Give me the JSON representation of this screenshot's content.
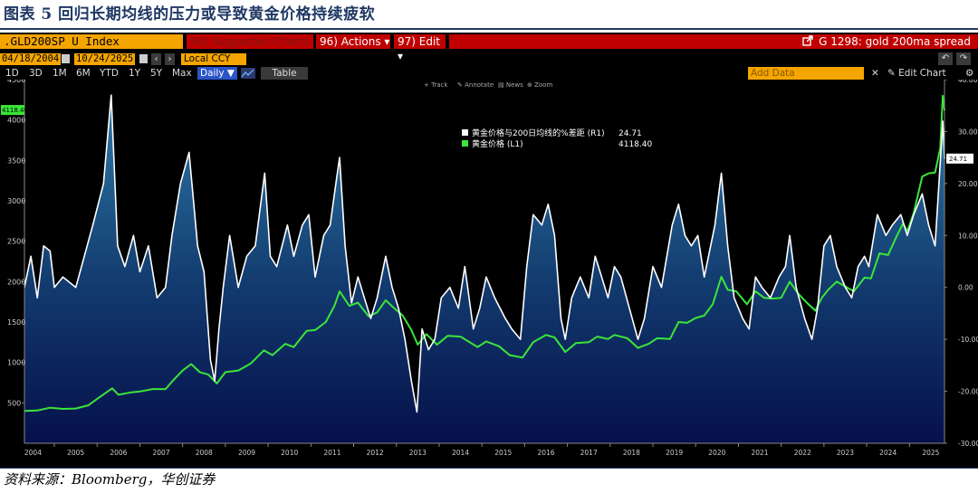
{
  "figure": {
    "title": "图表 5  回归长期均线的压力或导致黄金价格持续疲软",
    "source": "资料来源：Bloomberg，华创证券"
  },
  "toolbar": {
    "index": ".GLD200SP U Index",
    "suggested": "90) Suggested Charts ",
    "suggested_close": "×",
    "actions": "96) Actions ▾",
    "edit": "97) Edit ▾",
    "chart_name": "G 1298: gold 200ma spread",
    "chart_name_icon": "external-link-icon",
    "start_date": "04/18/2004",
    "end_date": "10/24/2025",
    "currency": "Local CCY",
    "periods": [
      "1D",
      "3D",
      "1M",
      "6M",
      "YTD",
      "1Y",
      "5Y",
      "Max"
    ],
    "frequency": "Daily ▼",
    "table": "Table",
    "add_data": "Add Data",
    "edit_chart": "✎ Edit Chart",
    "chart_tools": [
      "+ Track",
      "✎ Annotate",
      "▤ News",
      "⊕ Zoom"
    ]
  },
  "chart_data": {
    "type": "line",
    "title": "",
    "x_start": 2004.3,
    "x_end": 2025.82,
    "x_ticks": [
      "2004",
      "2005",
      "2006",
      "2007",
      "2008",
      "2009",
      "2010",
      "2011",
      "2012",
      "2013",
      "2014",
      "2015",
      "2016",
      "2017",
      "2018",
      "2019",
      "2020",
      "2021",
      "2022",
      "2023",
      "2024",
      "2025"
    ],
    "left_axis": {
      "min": 0,
      "max": 4500,
      "ticks": [
        500,
        1000,
        1500,
        2000,
        2500,
        3000,
        3500,
        4000,
        4500
      ]
    },
    "right_axis": {
      "min": -30,
      "max": 40,
      "ticks": [
        "-30.00",
        "-20.00",
        "-10.00",
        "0.00",
        "10.00",
        "20.00",
        "30.00",
        "40.00"
      ],
      "tick_values": [
        -30,
        -20,
        -10,
        0,
        10,
        20,
        30,
        40
      ]
    },
    "legend": {
      "placement": "top-center"
    },
    "series": [
      {
        "name": "黄金价格与200日均线的%差距 (R1)",
        "axis": "right",
        "color": "#ffffff",
        "last_value": "24.71",
        "points": [
          [
            2004.3,
            0
          ],
          [
            2004.45,
            6
          ],
          [
            2004.6,
            -2
          ],
          [
            2004.75,
            8
          ],
          [
            2004.9,
            7
          ],
          [
            2005.0,
            0
          ],
          [
            2005.2,
            2
          ],
          [
            2005.5,
            0
          ],
          [
            2005.7,
            6
          ],
          [
            2005.9,
            12
          ],
          [
            2006.15,
            20
          ],
          [
            2006.33,
            37
          ],
          [
            2006.48,
            8
          ],
          [
            2006.65,
            4
          ],
          [
            2006.85,
            10
          ],
          [
            2007.0,
            3
          ],
          [
            2007.2,
            8
          ],
          [
            2007.4,
            -2
          ],
          [
            2007.6,
            0
          ],
          [
            2007.75,
            10
          ],
          [
            2007.95,
            20
          ],
          [
            2008.15,
            26
          ],
          [
            2008.35,
            8
          ],
          [
            2008.5,
            3
          ],
          [
            2008.65,
            -14
          ],
          [
            2008.75,
            -18
          ],
          [
            2008.85,
            -8
          ],
          [
            2008.95,
            0
          ],
          [
            2009.1,
            10
          ],
          [
            2009.3,
            0
          ],
          [
            2009.5,
            6
          ],
          [
            2009.7,
            8
          ],
          [
            2009.92,
            22
          ],
          [
            2010.05,
            6
          ],
          [
            2010.2,
            4
          ],
          [
            2010.45,
            12
          ],
          [
            2010.6,
            6
          ],
          [
            2010.8,
            12
          ],
          [
            2010.95,
            14
          ],
          [
            2011.1,
            2
          ],
          [
            2011.3,
            10
          ],
          [
            2011.45,
            12
          ],
          [
            2011.55,
            18
          ],
          [
            2011.67,
            25
          ],
          [
            2011.8,
            8
          ],
          [
            2011.95,
            -3
          ],
          [
            2012.1,
            2
          ],
          [
            2012.25,
            -2
          ],
          [
            2012.4,
            -6
          ],
          [
            2012.55,
            -2
          ],
          [
            2012.75,
            6
          ],
          [
            2012.9,
            0
          ],
          [
            2013.05,
            -4
          ],
          [
            2013.2,
            -10
          ],
          [
            2013.35,
            -18
          ],
          [
            2013.48,
            -24
          ],
          [
            2013.6,
            -8
          ],
          [
            2013.75,
            -12
          ],
          [
            2013.9,
            -10
          ],
          [
            2014.05,
            -2
          ],
          [
            2014.25,
            0
          ],
          [
            2014.45,
            -4
          ],
          [
            2014.6,
            4
          ],
          [
            2014.8,
            -8
          ],
          [
            2014.95,
            -4
          ],
          [
            2015.1,
            2
          ],
          [
            2015.3,
            -2
          ],
          [
            2015.55,
            -6
          ],
          [
            2015.7,
            -8
          ],
          [
            2015.9,
            -10
          ],
          [
            2016.05,
            4
          ],
          [
            2016.2,
            14
          ],
          [
            2016.4,
            12
          ],
          [
            2016.55,
            16
          ],
          [
            2016.7,
            10
          ],
          [
            2016.85,
            -6
          ],
          [
            2016.95,
            -10
          ],
          [
            2017.1,
            -2
          ],
          [
            2017.3,
            2
          ],
          [
            2017.5,
            -2
          ],
          [
            2017.65,
            6
          ],
          [
            2017.8,
            2
          ],
          [
            2017.95,
            -2
          ],
          [
            2018.1,
            4
          ],
          [
            2018.25,
            2
          ],
          [
            2018.45,
            -4
          ],
          [
            2018.65,
            -10
          ],
          [
            2018.8,
            -6
          ],
          [
            2019.0,
            4
          ],
          [
            2019.2,
            0
          ],
          [
            2019.45,
            12
          ],
          [
            2019.6,
            16
          ],
          [
            2019.75,
            10
          ],
          [
            2019.9,
            8
          ],
          [
            2020.05,
            10
          ],
          [
            2020.2,
            2
          ],
          [
            2020.45,
            12
          ],
          [
            2020.6,
            22
          ],
          [
            2020.75,
            8
          ],
          [
            2020.9,
            -2
          ],
          [
            2021.1,
            -6
          ],
          [
            2021.25,
            -8
          ],
          [
            2021.4,
            2
          ],
          [
            2021.55,
            0
          ],
          [
            2021.75,
            -2
          ],
          [
            2021.95,
            2
          ],
          [
            2022.1,
            4
          ],
          [
            2022.2,
            10
          ],
          [
            2022.35,
            0
          ],
          [
            2022.55,
            -6
          ],
          [
            2022.72,
            -10
          ],
          [
            2022.85,
            -4
          ],
          [
            2023.0,
            8
          ],
          [
            2023.15,
            10
          ],
          [
            2023.3,
            4
          ],
          [
            2023.5,
            0
          ],
          [
            2023.65,
            -2
          ],
          [
            2023.8,
            4
          ],
          [
            2023.95,
            6
          ],
          [
            2024.05,
            4
          ],
          [
            2024.25,
            14
          ],
          [
            2024.45,
            10
          ],
          [
            2024.6,
            12
          ],
          [
            2024.8,
            14
          ],
          [
            2024.95,
            10
          ],
          [
            2025.1,
            14
          ],
          [
            2025.3,
            18
          ],
          [
            2025.45,
            12
          ],
          [
            2025.6,
            8
          ],
          [
            2025.72,
            24
          ],
          [
            2025.78,
            32
          ],
          [
            2025.82,
            24.71
          ]
        ]
      },
      {
        "name": "黄金价格 (L1)",
        "axis": "left",
        "color": "#39e639",
        "last_value": "4118.40",
        "points": [
          [
            2004.3,
            400
          ],
          [
            2004.6,
            405
          ],
          [
            2004.9,
            440
          ],
          [
            2005.2,
            425
          ],
          [
            2005.5,
            430
          ],
          [
            2005.8,
            470
          ],
          [
            2006.0,
            550
          ],
          [
            2006.35,
            680
          ],
          [
            2006.5,
            600
          ],
          [
            2006.8,
            630
          ],
          [
            2007.0,
            640
          ],
          [
            2007.3,
            670
          ],
          [
            2007.6,
            670
          ],
          [
            2007.8,
            790
          ],
          [
            2008.0,
            900
          ],
          [
            2008.2,
            980
          ],
          [
            2008.4,
            880
          ],
          [
            2008.6,
            850
          ],
          [
            2008.8,
            740
          ],
          [
            2009.0,
            880
          ],
          [
            2009.3,
            900
          ],
          [
            2009.6,
            990
          ],
          [
            2009.9,
            1150
          ],
          [
            2010.1,
            1090
          ],
          [
            2010.4,
            1230
          ],
          [
            2010.6,
            1190
          ],
          [
            2010.9,
            1390
          ],
          [
            2011.1,
            1400
          ],
          [
            2011.35,
            1500
          ],
          [
            2011.55,
            1700
          ],
          [
            2011.67,
            1880
          ],
          [
            2011.9,
            1700
          ],
          [
            2012.1,
            1740
          ],
          [
            2012.35,
            1570
          ],
          [
            2012.55,
            1620
          ],
          [
            2012.75,
            1770
          ],
          [
            2012.95,
            1670
          ],
          [
            2013.15,
            1580
          ],
          [
            2013.35,
            1400
          ],
          [
            2013.5,
            1220
          ],
          [
            2013.7,
            1350
          ],
          [
            2013.95,
            1220
          ],
          [
            2014.2,
            1330
          ],
          [
            2014.5,
            1320
          ],
          [
            2014.9,
            1190
          ],
          [
            2015.1,
            1260
          ],
          [
            2015.4,
            1200
          ],
          [
            2015.65,
            1090
          ],
          [
            2015.95,
            1060
          ],
          [
            2016.2,
            1250
          ],
          [
            2016.5,
            1340
          ],
          [
            2016.7,
            1310
          ],
          [
            2016.95,
            1130
          ],
          [
            2017.2,
            1240
          ],
          [
            2017.5,
            1250
          ],
          [
            2017.7,
            1320
          ],
          [
            2017.95,
            1290
          ],
          [
            2018.1,
            1340
          ],
          [
            2018.4,
            1300
          ],
          [
            2018.65,
            1180
          ],
          [
            2018.9,
            1230
          ],
          [
            2019.1,
            1300
          ],
          [
            2019.4,
            1290
          ],
          [
            2019.6,
            1500
          ],
          [
            2019.8,
            1490
          ],
          [
            2020.0,
            1550
          ],
          [
            2020.2,
            1580
          ],
          [
            2020.4,
            1720
          ],
          [
            2020.6,
            2060
          ],
          [
            2020.75,
            1900
          ],
          [
            2020.95,
            1880
          ],
          [
            2021.2,
            1720
          ],
          [
            2021.4,
            1880
          ],
          [
            2021.6,
            1800
          ],
          [
            2021.8,
            1790
          ],
          [
            2022.0,
            1800
          ],
          [
            2022.2,
            2000
          ],
          [
            2022.4,
            1850
          ],
          [
            2022.6,
            1740
          ],
          [
            2022.8,
            1640
          ],
          [
            2022.95,
            1800
          ],
          [
            2023.1,
            1900
          ],
          [
            2023.3,
            2000
          ],
          [
            2023.5,
            1940
          ],
          [
            2023.7,
            1880
          ],
          [
            2023.95,
            2050
          ],
          [
            2024.1,
            2040
          ],
          [
            2024.3,
            2350
          ],
          [
            2024.5,
            2330
          ],
          [
            2024.7,
            2560
          ],
          [
            2024.85,
            2720
          ],
          [
            2024.95,
            2620
          ],
          [
            2025.1,
            2850
          ],
          [
            2025.3,
            3300
          ],
          [
            2025.45,
            3340
          ],
          [
            2025.6,
            3350
          ],
          [
            2025.72,
            3650
          ],
          [
            2025.78,
            4300
          ],
          [
            2025.82,
            4118.4
          ]
        ]
      }
    ]
  }
}
